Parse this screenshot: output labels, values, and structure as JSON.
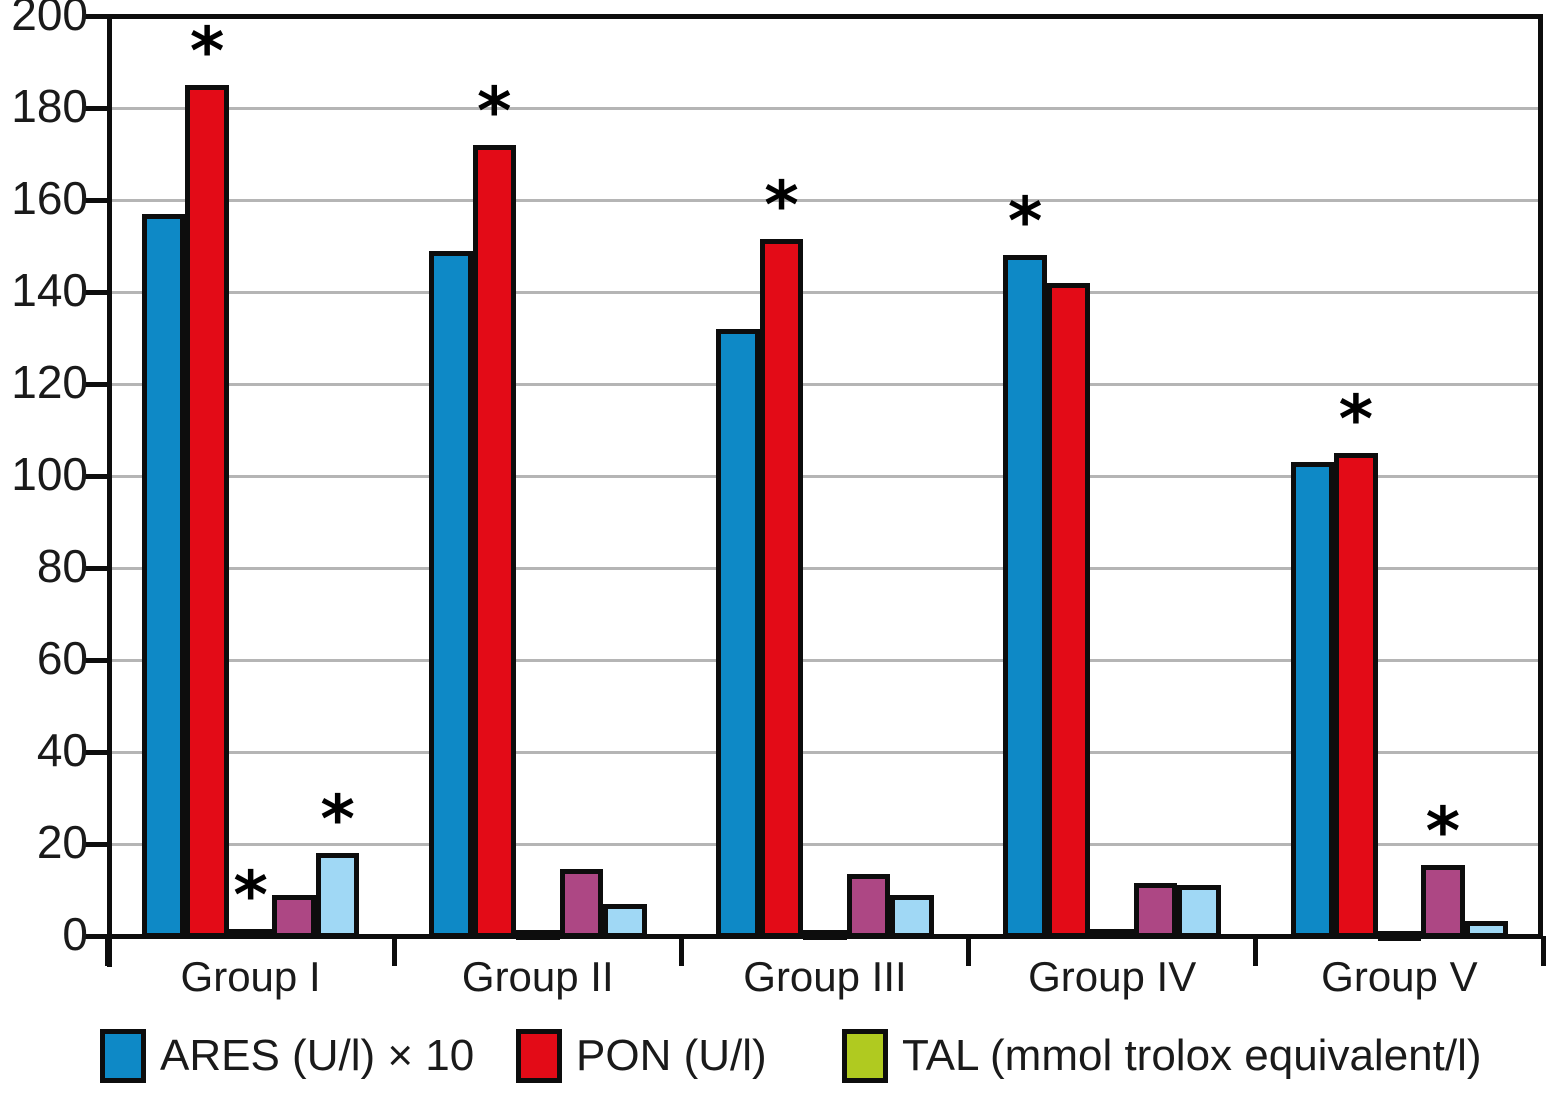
{
  "chart_data": {
    "type": "bar",
    "title": "",
    "xlabel": "",
    "ylabel": "",
    "ylim": [
      0,
      200
    ],
    "ytick_step": 20,
    "yticks": [
      0,
      20,
      40,
      60,
      80,
      100,
      120,
      140,
      160,
      180,
      200
    ],
    "grid": true,
    "legend_position": "bottom",
    "categories": [
      "Group I",
      "Group II",
      "Group III",
      "Group IV",
      "Group V"
    ],
    "series": [
      {
        "key": "ares",
        "name": "ARES (U/l) × 10",
        "color": "#0e89c6",
        "values": [
          157,
          149,
          132,
          148,
          103
        ]
      },
      {
        "key": "pon",
        "name": "PON (U/l)",
        "color": "#e30b17",
        "values": [
          185,
          172,
          151.5,
          142,
          105
        ]
      },
      {
        "key": "tal",
        "name": "TAL (mmol trolox equivalent/l)",
        "color": "#b0ca20",
        "values": [
          1.5,
          1.2,
          1.2,
          1.5,
          1
        ]
      },
      {
        "key": "series4",
        "name": "",
        "color": "#ad4784",
        "values": [
          9,
          14.5,
          13.5,
          11.5,
          15.5
        ]
      },
      {
        "key": "series5",
        "name": "",
        "color": "#a0d8f5",
        "values": [
          18,
          7,
          9,
          11,
          3.3
        ]
      }
    ],
    "annotations": [
      {
        "group": 0,
        "series": 1,
        "symbol": "*"
      },
      {
        "group": 0,
        "series": 2,
        "symbol": "*"
      },
      {
        "group": 0,
        "series": 4,
        "symbol": "*"
      },
      {
        "group": 1,
        "series": 1,
        "symbol": "*"
      },
      {
        "group": 2,
        "series": 1,
        "symbol": "*"
      },
      {
        "group": 3,
        "series": 0,
        "symbol": "*"
      },
      {
        "group": 4,
        "series": 1,
        "symbol": "*"
      },
      {
        "group": 4,
        "series": 3,
        "symbol": "*"
      }
    ]
  },
  "legend": {
    "items": [
      {
        "label": "ARES (U/l) × 10",
        "color": "#0e89c6"
      },
      {
        "label": "PON (U/l)",
        "color": "#e30b17"
      },
      {
        "label": "TAL (mmol trolox equivalent/l)",
        "color": "#b0ca20"
      }
    ]
  },
  "colors": {
    "axis": "#0d0d0d",
    "gridline": "#b5b5b5",
    "text": "#1a1a1a",
    "background": "#ffffff"
  }
}
